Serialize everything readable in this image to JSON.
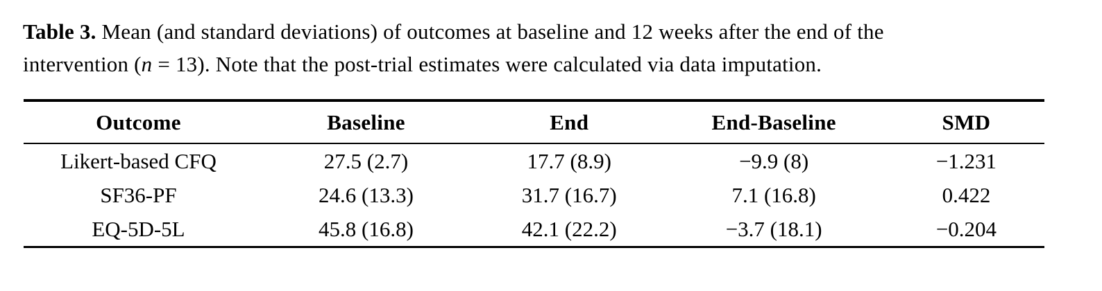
{
  "page": {
    "background": "#ffffff",
    "text_color": "#000000",
    "rule_color": "#000000"
  },
  "caption": {
    "line1": {
      "label": "Table 3.",
      "text": " Mean (and standard deviations) of outcomes at baseline and 12 weeks after the end of the"
    },
    "line2": {
      "pre": "intervention (",
      "variable": "n",
      "post": " = 13). Note that the post-trial estimates were calculated via data imputation."
    }
  },
  "table": {
    "headers": [
      "Outcome",
      "Baseline",
      "End",
      "End-Baseline",
      "SMD"
    ],
    "rows": [
      {
        "outcome": "Likert-based CFQ",
        "baseline": "27.5 (2.7)",
        "end": "17.7 (8.9)",
        "end_baseline": "−9.9 (8)",
        "smd": "−1.231"
      },
      {
        "outcome": "SF36-PF",
        "baseline": "24.6 (13.3)",
        "end": "31.7 (16.7)",
        "end_baseline": "7.1 (16.8)",
        "smd": "0.422"
      },
      {
        "outcome": "EQ-5D-5L",
        "baseline": "45.8 (16.8)",
        "end": "42.1 (22.2)",
        "end_baseline": "−3.7 (18.1)",
        "smd": "−0.204"
      }
    ]
  }
}
